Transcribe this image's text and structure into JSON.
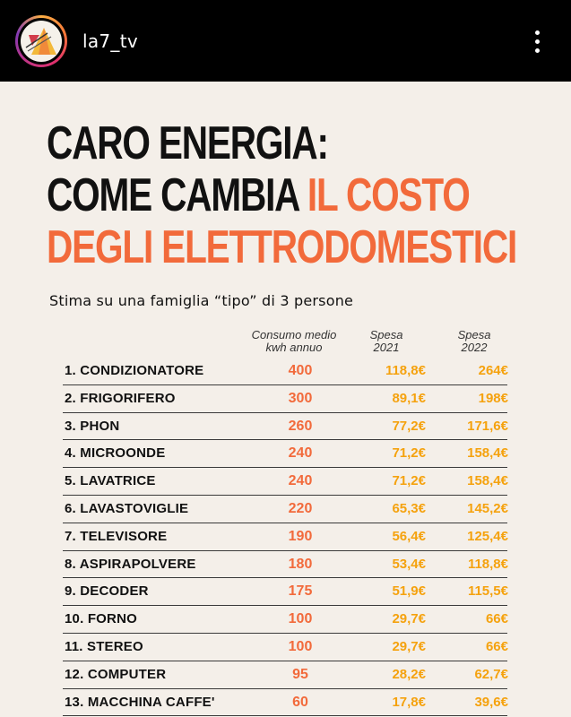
{
  "account": {
    "username": "la7_tv"
  },
  "icons": {
    "avatar": "la7-logo-icon",
    "menu": "more-vertical-icon"
  },
  "headline": {
    "line1": "CARO ENERGIA:",
    "line2a": "COME CAMBIA ",
    "line2b": "IL COSTO",
    "line3": "DEGLI ELETTRODOMESTICI"
  },
  "subtitle": "Stima su una famiglia “tipo” di 3 persone",
  "columns": {
    "consumo": [
      "Consumo medio",
      "kwh annuo"
    ],
    "spesa2021": [
      "Spesa",
      "2021"
    ],
    "spesa2022": [
      "Spesa",
      "2022"
    ]
  },
  "rows": [
    {
      "name": "1. CONDIZIONATORE",
      "consumo": "400",
      "spesa2021": "118,8€",
      "spesa2022": "264€"
    },
    {
      "name": "2. FRIGORIFERO",
      "consumo": "300",
      "spesa2021": "89,1€",
      "spesa2022": "198€"
    },
    {
      "name": "3. PHON",
      "consumo": "260",
      "spesa2021": "77,2€",
      "spesa2022": "171,6€"
    },
    {
      "name": "4. MICROONDE",
      "consumo": "240",
      "spesa2021": "71,2€",
      "spesa2022": "158,4€"
    },
    {
      "name": "5. LAVATRICE",
      "consumo": "240",
      "spesa2021": "71,2€",
      "spesa2022": "158,4€"
    },
    {
      "name": "6. LAVASTOVIGLIE",
      "consumo": "220",
      "spesa2021": "65,3€",
      "spesa2022": "145,2€"
    },
    {
      "name": "7. TELEVISORE",
      "consumo": "190",
      "spesa2021": "56,4€",
      "spesa2022": "125,4€"
    },
    {
      "name": "8. ASPIRAPOLVERE",
      "consumo": "180",
      "spesa2021": "53,4€",
      "spesa2022": "118,8€"
    },
    {
      "name": "9. DECODER",
      "consumo": "175",
      "spesa2021": "51,9€",
      "spesa2022": "115,5€"
    },
    {
      "name": "10. FORNO",
      "consumo": "100",
      "spesa2021": "29,7€",
      "spesa2022": "66€"
    },
    {
      "name": "11. STEREO",
      "consumo": "100",
      "spesa2021": "29,7€",
      "spesa2022": "66€"
    },
    {
      "name": "12. COMPUTER",
      "consumo": "95",
      "spesa2021": "28,2€",
      "spesa2022": "62,7€"
    },
    {
      "name": "13. MACCHINA CAFFE'",
      "consumo": "60",
      "spesa2021": "17,8€",
      "spesa2022": "39,6€"
    }
  ]
}
